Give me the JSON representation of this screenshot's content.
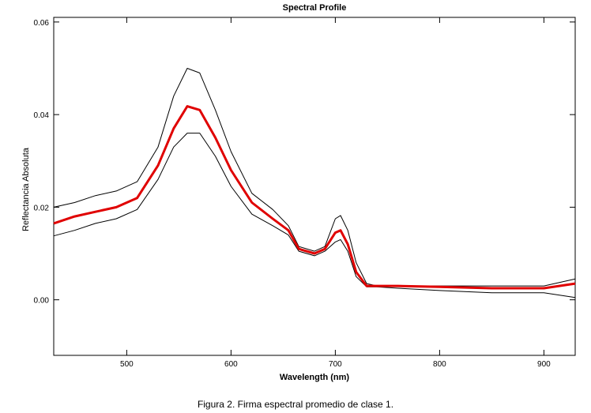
{
  "chart_data": {
    "type": "line",
    "title": "Spectral Profile",
    "xlabel": "Wavelength (nm)",
    "ylabel": "Reflectancia Absoluta",
    "xlim": [
      430,
      930
    ],
    "ylim": [
      -0.012,
      0.061
    ],
    "x_ticks": [
      500,
      600,
      700,
      800,
      900
    ],
    "x_tick_labels": [
      "500",
      "600",
      "700",
      "800",
      "900"
    ],
    "y_ticks": [
      0.0,
      0.02,
      0.04,
      0.06
    ],
    "y_tick_labels": [
      "0.00",
      "0.02",
      "0.04",
      "0.06"
    ],
    "grid": false,
    "legend": "none",
    "colors": {
      "mean": "#e00000",
      "bounds": "#000000"
    },
    "x": [
      430,
      450,
      470,
      490,
      510,
      530,
      545,
      558,
      570,
      585,
      600,
      620,
      640,
      655,
      665,
      680,
      690,
      700,
      705,
      712,
      720,
      730,
      740,
      760,
      800,
      850,
      900,
      930
    ],
    "series": [
      {
        "role": "upper",
        "values": [
          0.02,
          0.021,
          0.0225,
          0.0235,
          0.0255,
          0.033,
          0.044,
          0.05,
          0.049,
          0.041,
          0.032,
          0.023,
          0.0195,
          0.016,
          0.0115,
          0.0105,
          0.0115,
          0.0175,
          0.0182,
          0.015,
          0.008,
          0.0035,
          0.003,
          0.003,
          0.003,
          0.003,
          0.003,
          0.0045
        ]
      },
      {
        "role": "mean",
        "values": [
          0.0165,
          0.018,
          0.019,
          0.02,
          0.022,
          0.029,
          0.037,
          0.0418,
          0.041,
          0.035,
          0.028,
          0.021,
          0.0175,
          0.015,
          0.011,
          0.01,
          0.011,
          0.0145,
          0.015,
          0.012,
          0.006,
          0.003,
          0.003,
          0.003,
          0.0028,
          0.0025,
          0.0025,
          0.0035
        ]
      },
      {
        "role": "lower",
        "values": [
          0.0138,
          0.015,
          0.0165,
          0.0175,
          0.0195,
          0.026,
          0.033,
          0.036,
          0.036,
          0.031,
          0.0245,
          0.0185,
          0.016,
          0.014,
          0.0105,
          0.0095,
          0.0105,
          0.0125,
          0.013,
          0.0105,
          0.005,
          0.0028,
          0.0028,
          0.0025,
          0.002,
          0.0015,
          0.0015,
          0.0005
        ]
      }
    ]
  },
  "caption": "Figura 2. Firma espectral promedio de clase 1."
}
